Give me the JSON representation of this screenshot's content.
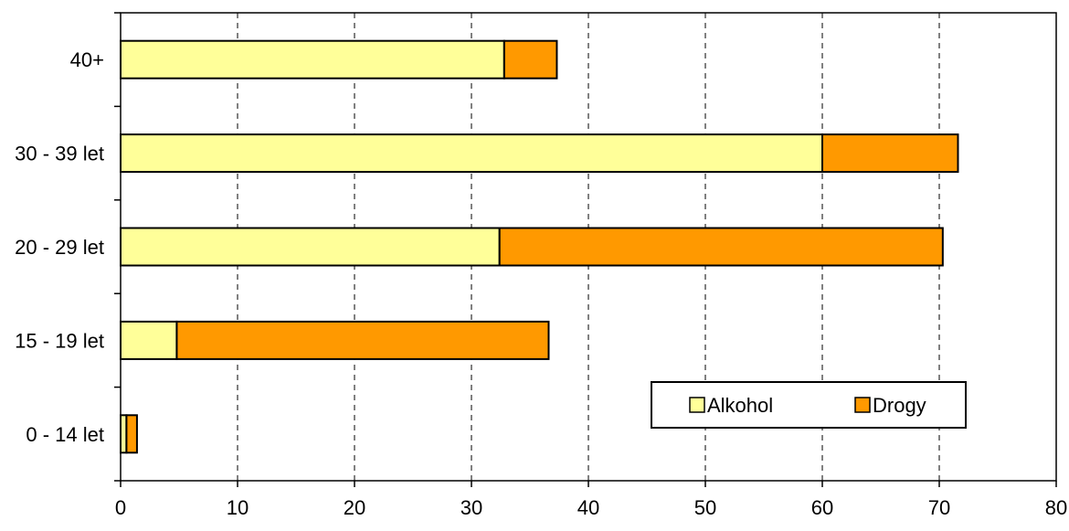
{
  "chart_data": {
    "type": "bar",
    "orientation": "horizontal",
    "stacked": true,
    "title": "",
    "xlabel": "",
    "ylabel": "",
    "categories": [
      "0 - 14 let",
      "15 - 19 let",
      "20 - 29 let",
      "30 - 39 let",
      "40+"
    ],
    "series": [
      {
        "name": "Alkohol",
        "values": [
          0.5,
          4.8,
          32.4,
          60.0,
          32.8
        ],
        "color": "#ffff99"
      },
      {
        "name": "Drogy",
        "values": [
          0.9,
          31.8,
          37.9,
          11.6,
          4.5
        ],
        "color": "#ff9900"
      }
    ],
    "xlim": [
      0,
      80
    ],
    "xticks": [
      0,
      10,
      20,
      30,
      40,
      50,
      60,
      70,
      80
    ],
    "grid": "vertical-dashed",
    "legend": "bottom-right"
  }
}
